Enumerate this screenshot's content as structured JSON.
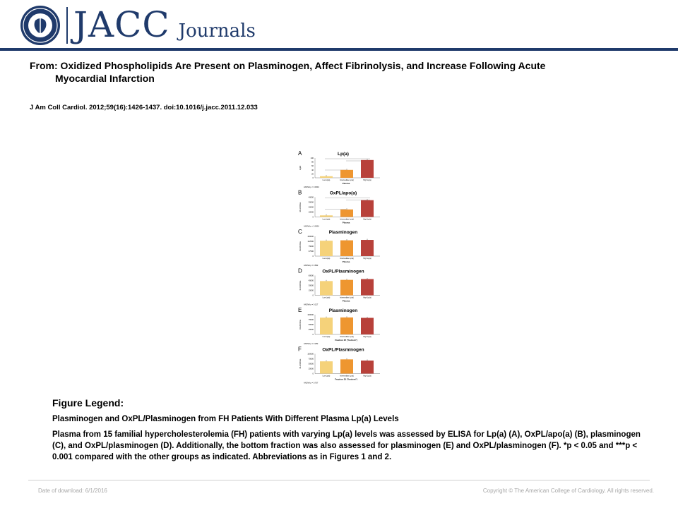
{
  "header": {
    "logo_main": "JACC",
    "logo_sub": "Journals",
    "seal_icon": "acc-seal-icon",
    "brand_color": "#1f3a6b"
  },
  "article": {
    "title_line1": "From: Oxidized Phospholipids Are Present on Plasminogen, Affect Fibrinolysis, and Increase Following Acute",
    "title_line2": "Myocardial Infarction",
    "citation": "J Am Coll Cardiol. 2012;59(16):1426-1437. doi:10.1016/j.jacc.2011.12.033"
  },
  "figure": {
    "bar_colors": [
      "#f5d27a",
      "#ee9630",
      "#b8413a"
    ],
    "panels": [
      {
        "letter": "A",
        "title": "Lp(a)",
        "ylabel": "mg/dl",
        "yticks": [
          "0",
          "20",
          "40",
          "60",
          "80",
          "100"
        ],
        "categories": [
          "Low Lp(a)",
          "Intermediate Lp(a)",
          "High Lp(a)"
        ],
        "values": [
          0.08,
          0.4,
          0.9
        ],
        "xlabel": "Plasma",
        "anova": "ANOVA p < 0.0001",
        "sig": true
      },
      {
        "letter": "B",
        "title": "OxPL/apo(a)",
        "ylabel": "RLU/100ms",
        "yticks": [
          "0",
          "10000",
          "20000",
          "30000",
          "40000"
        ],
        "categories": [
          "Low Lp(a)",
          "Intermediate Lp(a)",
          "High Lp(a)"
        ],
        "values": [
          0.08,
          0.38,
          0.85
        ],
        "xlabel": "Plasma",
        "anova": "ANOVA p < 0.0001",
        "sig": true
      },
      {
        "letter": "C",
        "title": "Plasminogen",
        "ylabel": "RLU/100ms",
        "yticks": [
          "0",
          "37500",
          "75000",
          "112500",
          "150000"
        ],
        "categories": [
          "Low Lp(a)",
          "Intermediate Lp(a)",
          "High Lp(a)"
        ],
        "values": [
          0.78,
          0.8,
          0.82
        ],
        "xlabel": "Plasma",
        "anova": "ANOVA p = 0.892",
        "sig": false
      },
      {
        "letter": "D",
        "title": "OxPL/Plasminogen",
        "ylabel": "RLU/100ms",
        "yticks": [
          "0",
          "15000",
          "30000",
          "45000",
          "60000"
        ],
        "categories": [
          "Low Lp(a)",
          "Intermediate Lp(a)",
          "High Lp(a)"
        ],
        "values": [
          0.72,
          0.78,
          0.82
        ],
        "xlabel": "Plasma",
        "anova": "ANOVA p = 0.127",
        "sig": false
      },
      {
        "letter": "E",
        "title": "Plasminogen",
        "ylabel": "RLU/100ms",
        "yticks": [
          "0",
          "25000",
          "50000",
          "75000",
          "100000"
        ],
        "categories": [
          "Low Lp(a)",
          "Intermediate Lp(a)",
          "High Lp(a)"
        ],
        "values": [
          0.85,
          0.86,
          0.84
        ],
        "xlabel": "Fraction 25 (\"bottom\")",
        "anova": "ANOVA p = 0.282",
        "sig": false
      },
      {
        "letter": "F",
        "title": "OxPL/Plasminogen",
        "ylabel": "RLU/100ms",
        "yticks": [
          "0",
          "25000",
          "50000",
          "75000",
          "100000"
        ],
        "categories": [
          "Low Lp(a)",
          "Intermediate Lp(a)",
          "High Lp(a)"
        ],
        "values": [
          0.62,
          0.72,
          0.66
        ],
        "xlabel": "Fraction 25 (\"bottom\")",
        "anova": "ANOVA p = 0.707",
        "sig": false
      }
    ]
  },
  "legend": {
    "heading": "Figure Legend:",
    "title": "Plasminogen and OxPL/Plasminogen from FH Patients With Different Plasma Lp(a) Levels",
    "body": "Plasma from 15 familial hypercholesterolemia (FH) patients with varying Lp(a) levels was assessed by ELISA for Lp(a) (A), OxPL/apo(a) (B), plasminogen (C), and OxPL/plasminogen (D). Additionally, the bottom fraction was also assessed for plasminogen (E) and OxPL/plasminogen (F). *p < 0.05 and ***p < 0.001 compared with the other groups as indicated. Abbreviations as in Figures 1 and 2."
  },
  "footer": {
    "download_date": "Date of download: 6/1/2016",
    "copyright": "Copyright © The American College of Cardiology. All rights reserved."
  }
}
